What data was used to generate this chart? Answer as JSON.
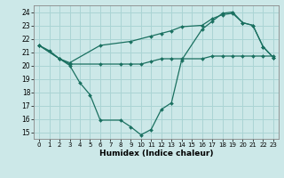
{
  "xlabel": "Humidex (Indice chaleur)",
  "bg_color": "#cce8e8",
  "grid_color": "#aad4d4",
  "line_color": "#1a7060",
  "xlim": [
    -0.5,
    23.5
  ],
  "ylim": [
    14.5,
    24.5
  ],
  "yticks": [
    15,
    16,
    17,
    18,
    19,
    20,
    21,
    22,
    23,
    24
  ],
  "xticks": [
    0,
    1,
    2,
    3,
    4,
    5,
    6,
    7,
    8,
    9,
    10,
    11,
    12,
    13,
    14,
    15,
    16,
    17,
    18,
    19,
    20,
    21,
    22,
    23
  ],
  "line1_x": [
    0,
    1,
    2,
    3,
    4,
    5,
    6,
    8,
    9,
    10,
    11,
    12,
    13,
    14,
    16,
    17,
    18,
    19,
    20,
    21,
    22,
    23
  ],
  "line1_y": [
    21.5,
    21.1,
    20.5,
    20.0,
    18.7,
    17.8,
    15.9,
    15.9,
    15.4,
    14.8,
    15.2,
    16.7,
    17.2,
    20.4,
    22.7,
    23.3,
    23.9,
    24.0,
    23.2,
    23.0,
    21.4,
    20.6
  ],
  "line2_x": [
    0,
    2,
    3,
    6,
    8,
    9,
    10,
    11,
    12,
    13,
    14,
    16,
    17,
    18,
    19,
    20,
    21,
    22,
    23
  ],
  "line2_y": [
    21.5,
    20.5,
    20.1,
    20.1,
    20.1,
    20.1,
    20.1,
    20.3,
    20.5,
    20.5,
    20.5,
    20.5,
    20.7,
    20.7,
    20.7,
    20.7,
    20.7,
    20.7,
    20.7
  ],
  "line3_x": [
    0,
    2,
    3,
    6,
    9,
    11,
    12,
    13,
    14,
    16,
    17,
    18,
    19,
    20,
    21,
    22,
    23
  ],
  "line3_y": [
    21.5,
    20.5,
    20.2,
    21.5,
    21.8,
    22.2,
    22.4,
    22.6,
    22.9,
    23.0,
    23.5,
    23.8,
    23.9,
    23.2,
    23.0,
    21.4,
    20.6
  ]
}
